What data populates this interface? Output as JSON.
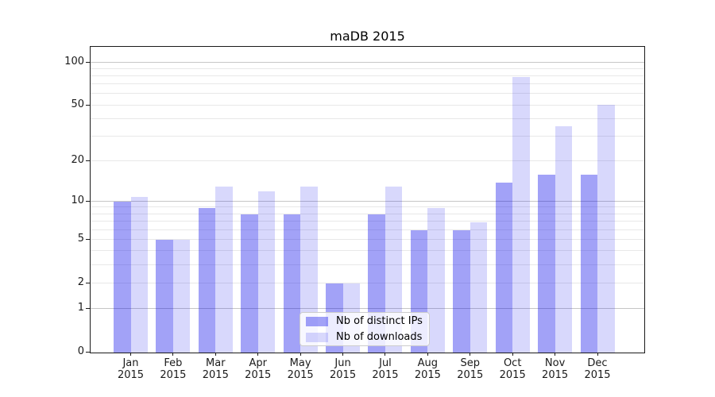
{
  "title": "maDB 2015",
  "chart_data": {
    "type": "bar",
    "title": "maDB 2015",
    "categories": [
      "Jan",
      "Feb",
      "Mar",
      "Apr",
      "May",
      "Jun",
      "Jul",
      "Aug",
      "Sep",
      "Oct",
      "Nov",
      "Dec"
    ],
    "category_year": "2015",
    "series": [
      {
        "name": "Nb of distinct IPs",
        "values": [
          10,
          5,
          9,
          8,
          8,
          2,
          8,
          6,
          6,
          14,
          16,
          16
        ],
        "color": "rgba(10,10,235,0.38)"
      },
      {
        "name": "Nb of downloads",
        "values": [
          11,
          5,
          13,
          12,
          13,
          2,
          13,
          9,
          7,
          80,
          36,
          51
        ],
        "color": "rgba(10,10,235,0.16)"
      }
    ],
    "xlabel": "",
    "ylabel": "",
    "y_axis": {
      "scale": "log1p",
      "tick_values": [
        0,
        1,
        2,
        5,
        10,
        20,
        50,
        100
      ],
      "tick_labels": [
        "0",
        "1",
        "2",
        "5",
        "10",
        "20",
        "50",
        "100"
      ],
      "major_grid_values": [
        1,
        10,
        100
      ],
      "minor_grid_values": [
        2,
        3,
        4,
        5,
        6,
        7,
        8,
        9,
        20,
        30,
        40,
        50,
        60,
        70,
        80,
        90
      ],
      "ylim": [
        0,
        129
      ]
    },
    "grid": "on",
    "legend_position": "lower center"
  },
  "colors": {
    "major_grid": "#c6c6c6",
    "minor_grid": "#e8e8e8",
    "axis": "#1a1a1a",
    "text": "#1a1a1a"
  }
}
